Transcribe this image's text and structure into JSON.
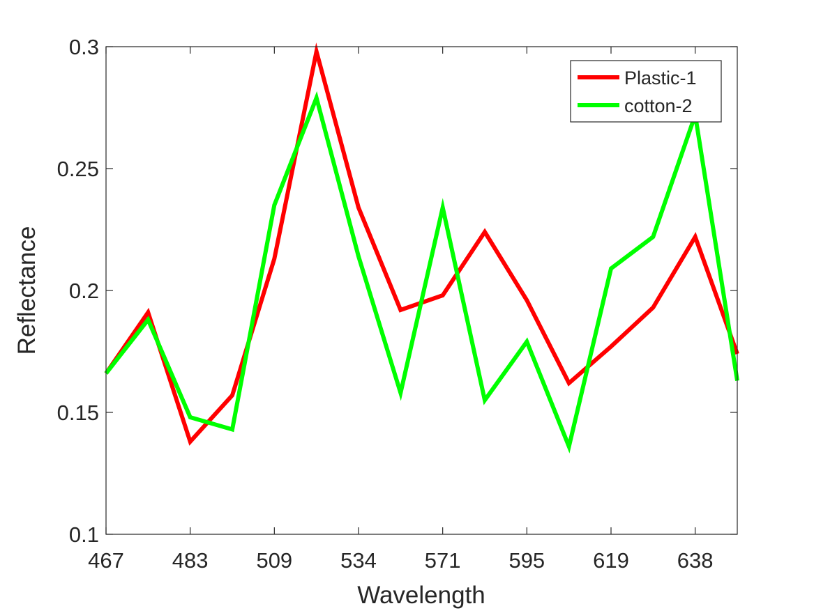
{
  "chart_data": {
    "type": "line",
    "title": "",
    "xlabel": "Wavelength",
    "ylabel": "Reflectance",
    "x_tick_labels": [
      "467",
      "483",
      "509",
      "534",
      "571",
      "595",
      "619",
      "638"
    ],
    "y_ticks": [
      "0.1",
      "0.15",
      "0.2",
      "0.25",
      "0.3"
    ],
    "ylim": [
      0.1,
      0.3
    ],
    "point_count": 16,
    "grid": false,
    "legend_position": "top-right",
    "series": [
      {
        "name": "Plastic-1",
        "color": "#ff0000",
        "values": [
          0.166,
          0.191,
          0.138,
          0.157,
          0.213,
          0.298,
          0.234,
          0.192,
          0.198,
          0.224,
          0.196,
          0.162,
          0.177,
          0.193,
          0.222,
          0.174
        ]
      },
      {
        "name": "cotton-2",
        "color": "#00ff00",
        "values": [
          0.166,
          0.188,
          0.148,
          0.143,
          0.235,
          0.279,
          0.214,
          0.158,
          0.234,
          0.155,
          0.179,
          0.136,
          0.209,
          0.222,
          0.272,
          0.163
        ]
      }
    ]
  }
}
